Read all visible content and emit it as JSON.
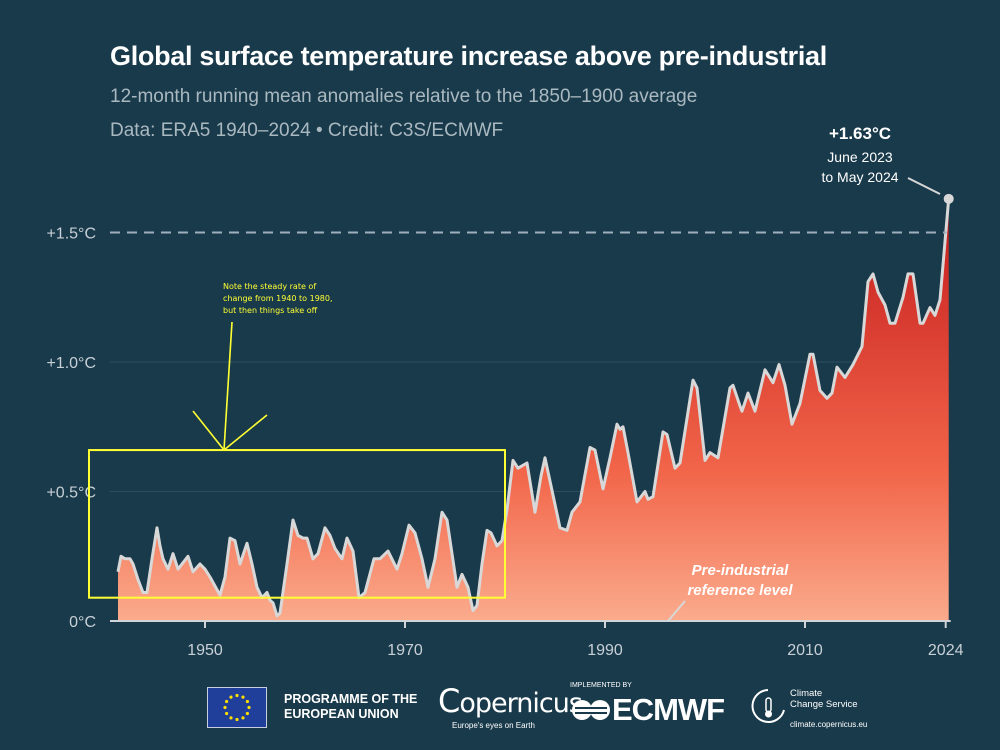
{
  "header": {
    "title": "Global surface temperature increase above pre-industrial",
    "subtitle": "12-month running mean anomalies relative to the 1850–1900 average",
    "credit": "Data: ERA5 1940–2024 • Credit: C3S/ECMWF"
  },
  "chart_data": {
    "type": "area",
    "title": "Global surface temperature increase above pre-industrial",
    "xlabel": "",
    "ylabel": "",
    "xlim": [
      1940,
      2024.5
    ],
    "ylim": [
      0,
      1.7
    ],
    "x_ticks": [
      1950,
      1970,
      1990,
      2010,
      2024
    ],
    "x_tick_labels": [
      "1950",
      "1970",
      "1990",
      "2010",
      "2024"
    ],
    "y_ticks": [
      0,
      0.5,
      1.0,
      1.5
    ],
    "y_tick_labels": [
      "0°C",
      "+0.5°C",
      "+1.0°C",
      "+1.5°C"
    ],
    "grid": "horizontal",
    "reference_line": {
      "value": 1.5,
      "style": "dashed"
    },
    "colors": {
      "low": "#fbab8d",
      "mid": "#f2664a",
      "high": "#c41a1c",
      "line": "#d8d8d8",
      "reference": "#9fb0bc"
    },
    "points": [
      [
        1941.3,
        0.19
      ],
      [
        1941.6,
        0.25
      ],
      [
        1942.0,
        0.24
      ],
      [
        1942.5,
        0.24
      ],
      [
        1942.8,
        0.22
      ],
      [
        1943.3,
        0.16
      ],
      [
        1943.8,
        0.11
      ],
      [
        1944.2,
        0.11
      ],
      [
        1944.7,
        0.24
      ],
      [
        1945.2,
        0.36
      ],
      [
        1945.5,
        0.29
      ],
      [
        1945.8,
        0.24
      ],
      [
        1946.3,
        0.2
      ],
      [
        1946.8,
        0.26
      ],
      [
        1947.3,
        0.2
      ],
      [
        1948.3,
        0.25
      ],
      [
        1948.8,
        0.19
      ],
      [
        1949.5,
        0.22
      ],
      [
        1950.0,
        0.2
      ],
      [
        1950.5,
        0.17
      ],
      [
        1951.5,
        0.1
      ],
      [
        1952.0,
        0.17
      ],
      [
        1952.5,
        0.32
      ],
      [
        1953.0,
        0.31
      ],
      [
        1953.5,
        0.22
      ],
      [
        1954.2,
        0.3
      ],
      [
        1954.7,
        0.22
      ],
      [
        1955.2,
        0.13
      ],
      [
        1955.7,
        0.09
      ],
      [
        1956.2,
        0.11
      ],
      [
        1956.5,
        0.08
      ],
      [
        1956.8,
        0.07
      ],
      [
        1957.2,
        0.02
      ],
      [
        1957.5,
        0.03
      ],
      [
        1958.2,
        0.22
      ],
      [
        1958.8,
        0.39
      ],
      [
        1959.3,
        0.33
      ],
      [
        1959.8,
        0.32
      ],
      [
        1960.2,
        0.32
      ],
      [
        1960.8,
        0.24
      ],
      [
        1961.3,
        0.26
      ],
      [
        1962.0,
        0.36
      ],
      [
        1962.5,
        0.33
      ],
      [
        1963.0,
        0.28
      ],
      [
        1963.7,
        0.24
      ],
      [
        1964.2,
        0.32
      ],
      [
        1964.8,
        0.27
      ],
      [
        1965.4,
        0.09
      ],
      [
        1966.0,
        0.11
      ],
      [
        1966.9,
        0.24
      ],
      [
        1967.5,
        0.24
      ],
      [
        1968.3,
        0.27
      ],
      [
        1969.2,
        0.2
      ],
      [
        1969.7,
        0.26
      ],
      [
        1970.4,
        0.37
      ],
      [
        1971.0,
        0.34
      ],
      [
        1971.7,
        0.24
      ],
      [
        1972.3,
        0.13
      ],
      [
        1973.0,
        0.24
      ],
      [
        1973.7,
        0.42
      ],
      [
        1974.2,
        0.39
      ],
      [
        1975.2,
        0.13
      ],
      [
        1975.7,
        0.18
      ],
      [
        1976.3,
        0.13
      ],
      [
        1976.8,
        0.04
      ],
      [
        1977.2,
        0.06
      ],
      [
        1977.7,
        0.22
      ],
      [
        1978.2,
        0.35
      ],
      [
        1978.6,
        0.34
      ],
      [
        1979.2,
        0.29
      ],
      [
        1979.7,
        0.31
      ],
      [
        1980.2,
        0.43
      ],
      [
        1980.8,
        0.62
      ],
      [
        1981.3,
        0.59
      ],
      [
        1982.2,
        0.61
      ],
      [
        1983.0,
        0.42
      ],
      [
        1983.6,
        0.56
      ],
      [
        1984.0,
        0.63
      ],
      [
        1985.5,
        0.36
      ],
      [
        1986.2,
        0.35
      ],
      [
        1986.7,
        0.42
      ],
      [
        1987.5,
        0.46
      ],
      [
        1988.5,
        0.67
      ],
      [
        1989.0,
        0.66
      ],
      [
        1989.8,
        0.51
      ],
      [
        1990.5,
        0.63
      ],
      [
        1991.2,
        0.76
      ],
      [
        1991.5,
        0.74
      ],
      [
        1991.8,
        0.75
      ],
      [
        1992.3,
        0.65
      ],
      [
        1993.2,
        0.46
      ],
      [
        1994.0,
        0.5
      ],
      [
        1994.3,
        0.47
      ],
      [
        1994.8,
        0.48
      ],
      [
        1995.8,
        0.73
      ],
      [
        1996.2,
        0.72
      ],
      [
        1997.0,
        0.59
      ],
      [
        1997.5,
        0.61
      ],
      [
        1998.8,
        0.93
      ],
      [
        1999.2,
        0.9
      ],
      [
        2000.0,
        0.62
      ],
      [
        2000.5,
        0.65
      ],
      [
        2001.3,
        0.63
      ],
      [
        2002.5,
        0.9
      ],
      [
        2002.8,
        0.91
      ],
      [
        2003.5,
        0.83
      ],
      [
        2003.7,
        0.81
      ],
      [
        2004.3,
        0.88
      ],
      [
        2005.0,
        0.81
      ],
      [
        2006.0,
        0.97
      ],
      [
        2006.8,
        0.92
      ],
      [
        2007.4,
        0.99
      ],
      [
        2008.0,
        0.91
      ],
      [
        2008.7,
        0.76
      ],
      [
        2009.5,
        0.84
      ],
      [
        2010.5,
        1.03
      ],
      [
        2010.8,
        1.03
      ],
      [
        2011.5,
        0.89
      ],
      [
        2012.2,
        0.86
      ],
      [
        2012.7,
        0.88
      ],
      [
        2013.2,
        0.98
      ],
      [
        2014.0,
        0.94
      ],
      [
        2014.8,
        0.99
      ],
      [
        2015.7,
        1.06
      ],
      [
        2016.3,
        1.31
      ],
      [
        2016.8,
        1.34
      ],
      [
        2017.3,
        1.27
      ],
      [
        2018.0,
        1.22
      ],
      [
        2018.5,
        1.15
      ],
      [
        2019.0,
        1.15
      ],
      [
        2019.8,
        1.25
      ],
      [
        2020.3,
        1.34
      ],
      [
        2020.8,
        1.34
      ],
      [
        2021.5,
        1.15
      ],
      [
        2021.8,
        1.15
      ],
      [
        2022.5,
        1.21
      ],
      [
        2023.0,
        1.18
      ],
      [
        2023.5,
        1.24
      ],
      [
        2024.37,
        1.63
      ]
    ],
    "annotations": {
      "peak_value": "+1.63°C",
      "peak_period_1": "June 2023",
      "peak_period_2": "to May 2024",
      "reference_1": "Pre-industrial",
      "reference_2": "reference level",
      "note_1": "Note the steady rate of",
      "note_2": "change from 1940 to 1980,",
      "note_3": "but then things take off",
      "note_box": {
        "x_range": [
          1938.4,
          1980.0
        ],
        "y_range": [
          0.09,
          0.66
        ],
        "color": "#ffff33"
      }
    }
  },
  "footer": {
    "eu_line1": "PROGRAMME OF THE",
    "eu_line2": "EUROPEAN UNION",
    "copernicus": "opernicus",
    "copernicus_c": "C",
    "copernicus_tagline": "Europe's eyes on Earth",
    "implemented_by": "IMPLEMENTED BY",
    "ecmwf": "ECMWF",
    "ccs_line1": "Climate",
    "ccs_line2": "Change Service",
    "ccs_url": "climate.copernicus.eu"
  }
}
